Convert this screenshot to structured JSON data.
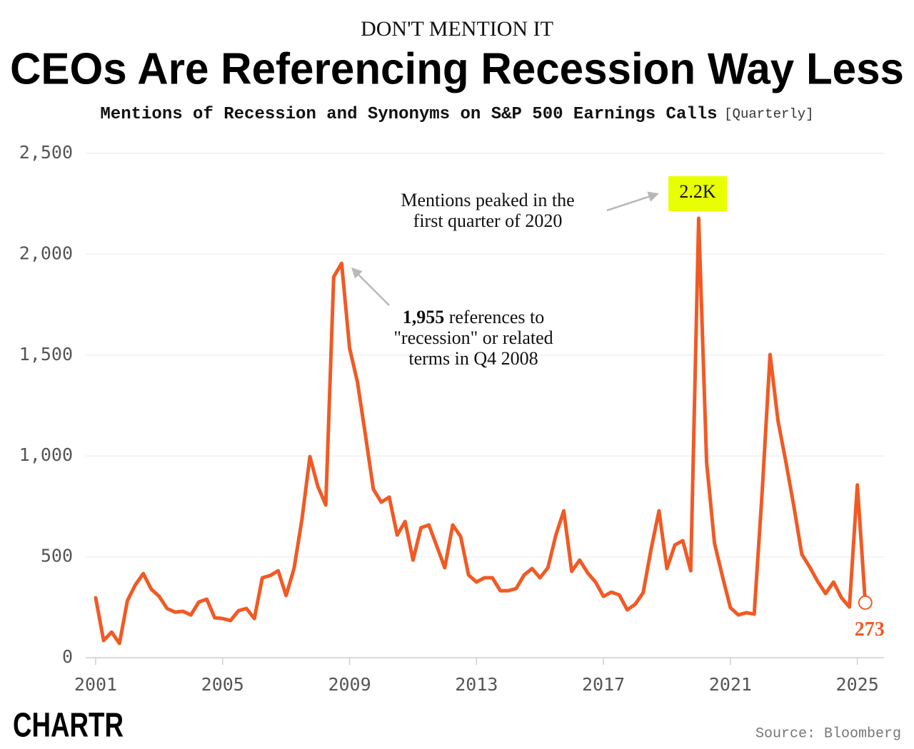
{
  "chart_data": {
    "type": "line",
    "kicker": "DON'T MENTION IT",
    "title": "CEOs Are Referencing Recession Way Less",
    "subtitle": "Mentions of Recession and Synonyms on S&P 500 Earnings Calls",
    "subtitle_note": "[Quarterly]",
    "source": "Source: Bloomberg",
    "brand": "CHARTR",
    "x": [
      2001,
      2001.25,
      2001.5,
      2001.75,
      2002,
      2002.25,
      2002.5,
      2002.75,
      2003,
      2003.25,
      2003.5,
      2003.75,
      2004,
      2004.25,
      2004.5,
      2004.75,
      2005,
      2005.25,
      2005.5,
      2005.75,
      2006,
      2006.25,
      2006.5,
      2006.75,
      2007,
      2007.25,
      2007.5,
      2007.75,
      2008,
      2008.25,
      2008.5,
      2008.75,
      2009,
      2009.25,
      2009.5,
      2009.75,
      2010,
      2010.25,
      2010.5,
      2010.75,
      2011,
      2011.25,
      2011.5,
      2011.75,
      2012,
      2012.25,
      2012.5,
      2012.75,
      2013,
      2013.25,
      2013.5,
      2013.75,
      2014,
      2014.25,
      2014.5,
      2014.75,
      2015,
      2015.25,
      2015.5,
      2015.75,
      2016,
      2016.25,
      2016.5,
      2016.75,
      2017,
      2017.25,
      2017.5,
      2017.75,
      2018,
      2018.25,
      2018.5,
      2018.75,
      2019,
      2019.25,
      2019.5,
      2019.75,
      2020,
      2020.25,
      2020.5,
      2020.75,
      2021,
      2021.25,
      2021.5,
      2021.75,
      2022,
      2022.25,
      2022.5,
      2022.75,
      2023,
      2023.25,
      2023.5,
      2023.75,
      2024,
      2024.25,
      2024.5,
      2024.75,
      2025,
      2025.25
    ],
    "series": [
      {
        "name": "Mentions",
        "color": "#f15a24",
        "values": [
          297,
          85,
          127,
          71,
          283,
          361,
          417,
          340,
          304,
          244,
          226,
          230,
          212,
          276,
          290,
          198,
          194,
          184,
          233,
          244,
          194,
          396,
          407,
          431,
          308,
          442,
          686,
          997,
          849,
          757,
          1888,
          1955,
          1535,
          1365,
          1103,
          835,
          771,
          796,
          608,
          675,
          484,
          644,
          658,
          552,
          446,
          658,
          601,
          410,
          375,
          396,
          396,
          332,
          332,
          343,
          410,
          442,
          396,
          446,
          608,
          728,
          428,
          484,
          421,
          375,
          304,
          325,
          311,
          237,
          265,
          322,
          537,
          728,
          442,
          559,
          580,
          431,
          2178,
          969,
          566,
          403,
          248,
          212,
          223,
          216,
          820,
          1503,
          1174,
          969,
          750,
          513,
          449,
          378,
          318,
          375,
          297,
          251,
          856,
          273
        ]
      }
    ],
    "xlim": [
      2001,
      2026.2
    ],
    "xticks": [
      2001,
      2005,
      2009,
      2013,
      2017,
      2021,
      2025
    ],
    "ylim": [
      0,
      2500
    ],
    "yticks": [
      0,
      500,
      {
        "value": 1000,
        "label": "1,000"
      },
      {
        "value": 1500,
        "label": "1,500"
      },
      {
        "value": 2000,
        "label": "2,000"
      },
      {
        "value": 2500,
        "label": "2,500"
      }
    ],
    "grid": true,
    "annotations": {
      "peak_2020": [
        "Mentions peaked in the",
        "first quarter of 2020"
      ],
      "peak_2020_label": "2.2K",
      "peak_2008": [
        "1,955",
        " references to",
        "\"recession\" or related",
        "terms in Q4 2008"
      ],
      "last_label": "273"
    }
  }
}
